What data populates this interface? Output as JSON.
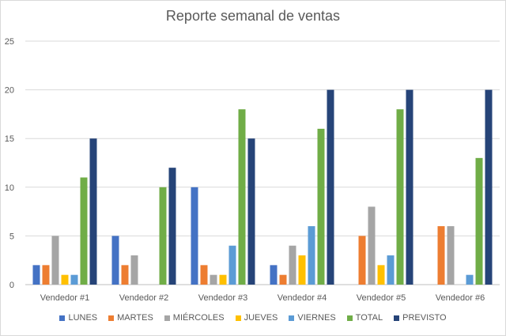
{
  "chart_data": {
    "type": "bar",
    "title": "Reporte semanal de ventas",
    "categories": [
      "Vendedor #1",
      "Vendedor #2",
      "Vendedor #3",
      "Vendedor #4",
      "Vendedor #5",
      "Vendedor #6"
    ],
    "ylim": [
      0,
      25
    ],
    "yticks": [
      0,
      5,
      10,
      15,
      20,
      25
    ],
    "grid": true,
    "legend_position": "bottom",
    "series": [
      {
        "name": "LUNES",
        "color": "#4472c4",
        "values": [
          2,
          5,
          10,
          2,
          0,
          0
        ]
      },
      {
        "name": "MARTES",
        "color": "#ed7d31",
        "values": [
          2,
          2,
          2,
          1,
          5,
          6
        ]
      },
      {
        "name": "MIÉRCOLES",
        "color": "#a5a5a5",
        "values": [
          5,
          3,
          1,
          4,
          8,
          6
        ]
      },
      {
        "name": "JUEVES",
        "color": "#ffc000",
        "values": [
          1,
          0,
          1,
          3,
          2,
          0
        ]
      },
      {
        "name": "VIERNES",
        "color": "#5b9bd5",
        "values": [
          1,
          0,
          4,
          6,
          3,
          1
        ]
      },
      {
        "name": "TOTAL",
        "color": "#70ad47",
        "values": [
          11,
          10,
          18,
          16,
          18,
          13
        ]
      },
      {
        "name": "PREVISTO",
        "color": "#264478",
        "values": [
          15,
          12,
          15,
          20,
          20,
          20
        ]
      }
    ]
  }
}
